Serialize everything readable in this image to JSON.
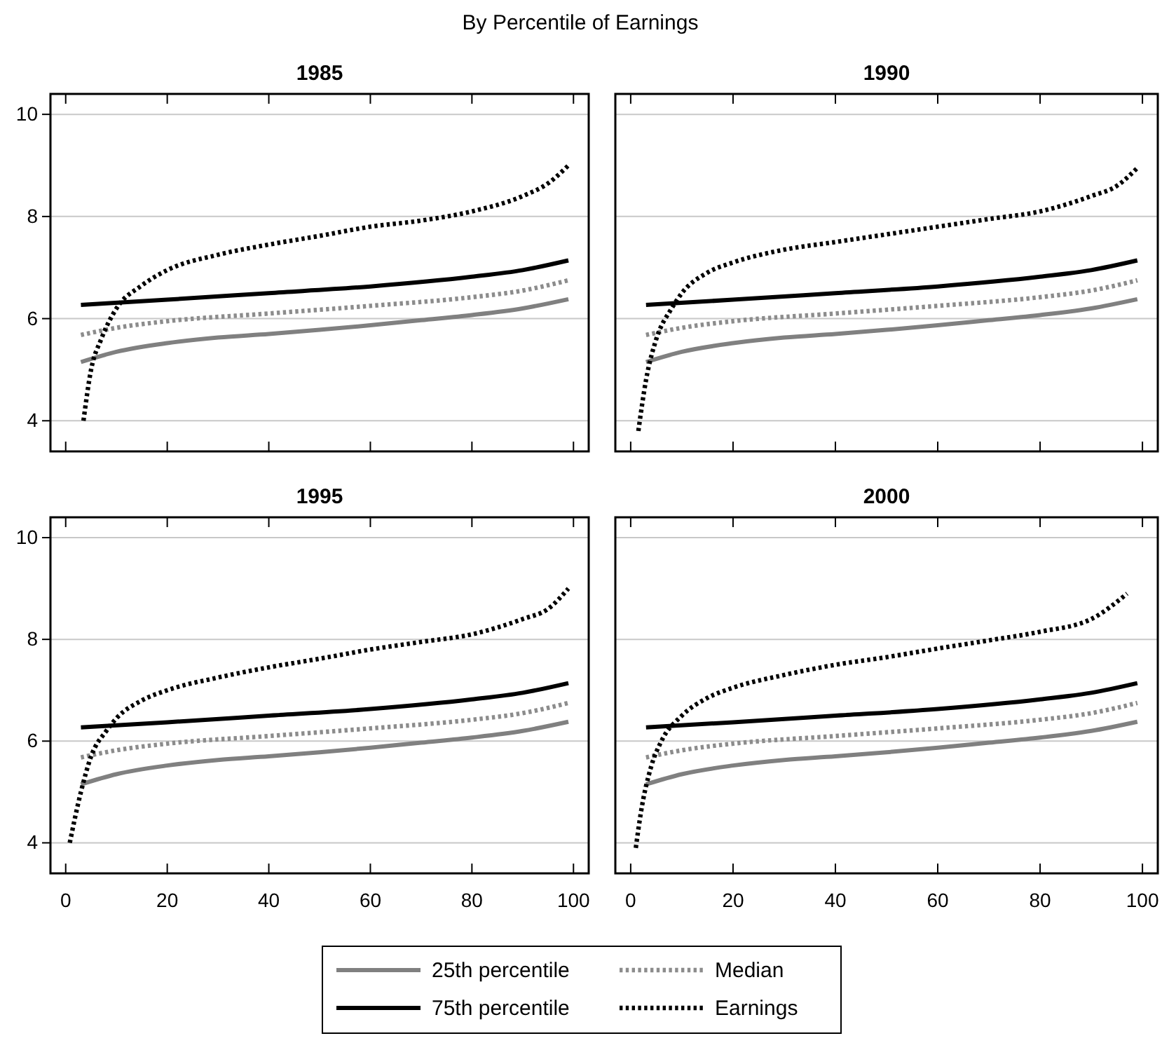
{
  "chart_data": [
    {
      "type": "line",
      "title": "1985",
      "annotations": [
        "By Percentile of Earnings"
      ],
      "xlim": [
        -3,
        103
      ],
      "ylim": [
        3.4,
        10.4
      ],
      "xticks": [
        0,
        20,
        40,
        60,
        80,
        100
      ],
      "yticks": [
        4,
        6,
        8,
        10
      ],
      "grid": "y",
      "tick_labels": "y",
      "series": [
        {
          "color": "#808080",
          "line_style": "solid",
          "x": [
            3,
            10,
            20,
            30,
            40,
            50,
            60,
            70,
            80,
            90,
            99
          ],
          "values": [
            5.15,
            5.35,
            5.52,
            5.63,
            5.7,
            5.78,
            5.87,
            5.97,
            6.07,
            6.2,
            6.38
          ]
        },
        {
          "color": "#000000",
          "line_style": "solid",
          "x": [
            3,
            20,
            40,
            60,
            80,
            90,
            99
          ],
          "values": [
            6.27,
            6.37,
            6.5,
            6.63,
            6.82,
            6.95,
            7.14
          ]
        },
        {
          "color": "#8c8c8c",
          "line_style": "dotted",
          "x": [
            3,
            10,
            20,
            40,
            60,
            80,
            90,
            99
          ],
          "values": [
            5.68,
            5.82,
            5.95,
            6.1,
            6.25,
            6.42,
            6.55,
            6.75
          ]
        },
        {
          "color": "#000000",
          "line_style": "dotted",
          "x": [
            3.5,
            5,
            7,
            10,
            15,
            20,
            30,
            40,
            50,
            60,
            70,
            80,
            90,
            95,
            99
          ],
          "values": [
            4,
            5,
            5.6,
            6.2,
            6.65,
            6.95,
            7.25,
            7.45,
            7.62,
            7.8,
            7.92,
            8.1,
            8.4,
            8.65,
            9
          ]
        }
      ]
    },
    {
      "type": "line",
      "title": "1990",
      "xlim": [
        -3,
        103
      ],
      "ylim": [
        3.4,
        10.4
      ],
      "xticks": [
        0,
        20,
        40,
        60,
        80,
        100
      ],
      "yticks": [
        4,
        6,
        8,
        10
      ],
      "grid": "y",
      "tick_labels": false,
      "series": [
        {
          "color": "#808080",
          "line_style": "solid",
          "x": [
            3,
            10,
            20,
            30,
            40,
            50,
            60,
            70,
            80,
            90,
            99
          ],
          "values": [
            5.15,
            5.35,
            5.52,
            5.63,
            5.7,
            5.78,
            5.87,
            5.97,
            6.07,
            6.2,
            6.38
          ]
        },
        {
          "color": "#000000",
          "line_style": "solid",
          "x": [
            3,
            20,
            40,
            60,
            80,
            90,
            99
          ],
          "values": [
            6.27,
            6.37,
            6.5,
            6.63,
            6.82,
            6.95,
            7.14
          ]
        },
        {
          "color": "#8c8c8c",
          "line_style": "dotted",
          "x": [
            3,
            10,
            20,
            40,
            60,
            80,
            90,
            99
          ],
          "values": [
            5.68,
            5.82,
            5.95,
            6.1,
            6.25,
            6.42,
            6.55,
            6.75
          ]
        },
        {
          "color": "#000000",
          "line_style": "dotted",
          "x": [
            1.5,
            3,
            5,
            8,
            10,
            15,
            20,
            30,
            40,
            50,
            60,
            70,
            80,
            90,
            95,
            99
          ],
          "values": [
            3.8,
            4.8,
            5.6,
            6.2,
            6.5,
            6.9,
            7.1,
            7.35,
            7.5,
            7.65,
            7.8,
            7.95,
            8.1,
            8.4,
            8.6,
            8.95
          ]
        }
      ]
    },
    {
      "type": "line",
      "title": "1995",
      "xlim": [
        -3,
        103
      ],
      "ylim": [
        3.4,
        10.4
      ],
      "xticks": [
        0,
        20,
        40,
        60,
        80,
        100
      ],
      "yticks": [
        4,
        6,
        8,
        10
      ],
      "grid": "y",
      "series": [
        {
          "color": "#808080",
          "line_style": "solid",
          "x": [
            3,
            10,
            20,
            30,
            40,
            50,
            60,
            70,
            80,
            90,
            99
          ],
          "values": [
            5.15,
            5.35,
            5.52,
            5.63,
            5.7,
            5.78,
            5.87,
            5.97,
            6.07,
            6.2,
            6.38
          ]
        },
        {
          "color": "#000000",
          "line_style": "solid",
          "x": [
            3,
            20,
            40,
            60,
            80,
            90,
            99
          ],
          "values": [
            6.27,
            6.37,
            6.5,
            6.63,
            6.82,
            6.95,
            7.14
          ]
        },
        {
          "color": "#8c8c8c",
          "line_style": "dotted",
          "x": [
            3,
            10,
            20,
            40,
            60,
            80,
            90,
            99
          ],
          "values": [
            5.68,
            5.82,
            5.95,
            6.1,
            6.25,
            6.42,
            6.55,
            6.75
          ]
        },
        {
          "color": "#000000",
          "line_style": "dotted",
          "x": [
            0.8,
            3,
            5,
            8,
            10,
            15,
            20,
            30,
            40,
            50,
            60,
            70,
            80,
            90,
            95,
            99
          ],
          "values": [
            4,
            5,
            5.7,
            6.2,
            6.45,
            6.8,
            7,
            7.25,
            7.45,
            7.62,
            7.8,
            7.95,
            8.1,
            8.4,
            8.6,
            9
          ]
        }
      ]
    },
    {
      "type": "line",
      "title": "2000",
      "xlim": [
        -3,
        103
      ],
      "ylim": [
        3.4,
        10.4
      ],
      "xticks": [
        0,
        20,
        40,
        60,
        80,
        100
      ],
      "yticks": [
        4,
        6,
        8,
        10
      ],
      "grid": "y",
      "tick_labels": "x",
      "legend": "bottom",
      "series": [
        {
          "name": "25th percentile",
          "color": "#808080",
          "line_style": "solid",
          "x": [
            3,
            10,
            20,
            30,
            40,
            50,
            60,
            70,
            80,
            90,
            99
          ],
          "values": [
            5.15,
            5.35,
            5.52,
            5.63,
            5.7,
            5.78,
            5.87,
            5.97,
            6.07,
            6.2,
            6.38
          ]
        },
        {
          "name": "75th percentile",
          "color": "#000000",
          "line_style": "solid",
          "x": [
            3,
            20,
            40,
            60,
            80,
            90,
            99
          ],
          "values": [
            6.27,
            6.37,
            6.5,
            6.63,
            6.82,
            6.95,
            7.14
          ]
        },
        {
          "name": "Median",
          "color": "#8c8c8c",
          "line_style": "dotted",
          "x": [
            3,
            10,
            20,
            40,
            60,
            80,
            90,
            99
          ],
          "values": [
            5.68,
            5.82,
            5.95,
            6.1,
            6.25,
            6.42,
            6.55,
            6.75
          ]
        },
        {
          "name": "Earnings",
          "color": "#000000",
          "line_style": "dotted",
          "x": [
            1,
            2,
            4,
            6,
            10,
            15,
            20,
            30,
            40,
            50,
            60,
            70,
            80,
            90,
            97
          ],
          "values": [
            3.9,
            4.6,
            5.5,
            6,
            6.5,
            6.85,
            7.05,
            7.3,
            7.5,
            7.65,
            7.82,
            7.98,
            8.15,
            8.4,
            8.9
          ]
        }
      ]
    }
  ]
}
